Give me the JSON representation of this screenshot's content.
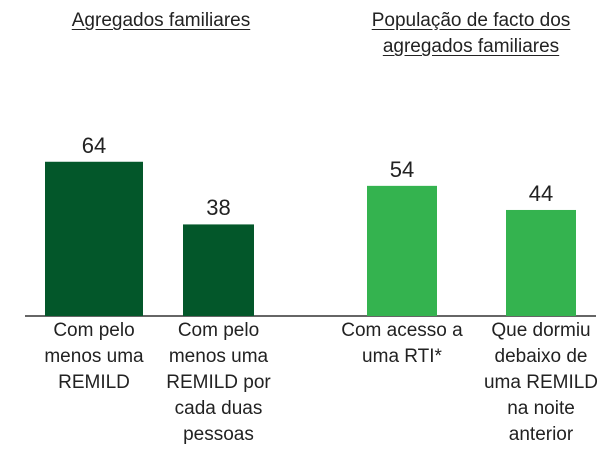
{
  "chart_data": {
    "type": "bar",
    "groups": [
      {
        "title": "Agregados familiares",
        "color": "#03572a",
        "categories": [
          "Com pelo menos uma REMILD",
          "Com pelo menos uma REMILD por cada duas pessoas"
        ],
        "values": [
          64,
          38
        ]
      },
      {
        "title": "População de facto dos agregados familiares",
        "color": "#34b34f",
        "categories": [
          "Com acesso a uma RTI*",
          "Que dormiu debaixo de uma REMILD na noite anterior"
        ],
        "values": [
          54,
          44
        ]
      }
    ]
  }
}
